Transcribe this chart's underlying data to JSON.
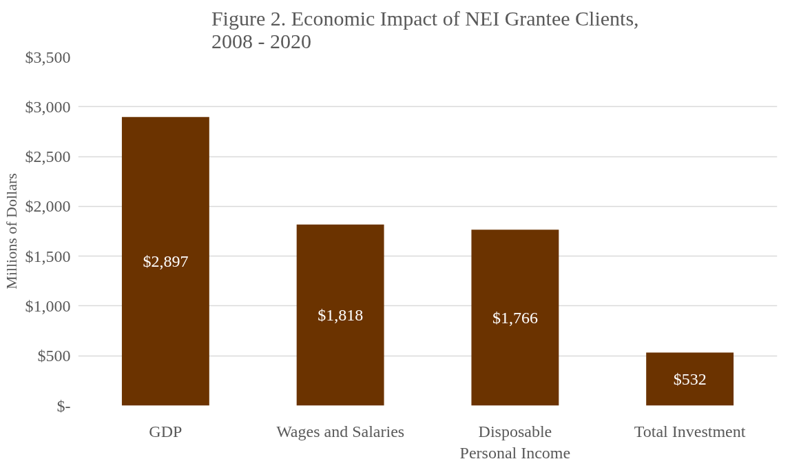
{
  "chart_data": {
    "type": "bar",
    "title": "Figure 2.  Economic Impact of NEI Grantee Clients,\n2008 - 2020",
    "ylabel": "Millions of Dollars",
    "categories": [
      "GDP",
      "Wages and Salaries",
      "Disposable\nPersonal Income",
      "Total Investment"
    ],
    "values": [
      2897,
      1818,
      1766,
      532
    ],
    "color": "#6b3300",
    "value_labels": [
      "$2,897",
      "$1,818",
      "$1,766",
      "$532"
    ],
    "ylim": [
      0,
      3500
    ],
    "yticks": [
      {
        "value": 0,
        "label": "$-"
      },
      {
        "value": 500,
        "label": "$500"
      },
      {
        "value": 1000,
        "label": "$1,000"
      },
      {
        "value": 1500,
        "label": "$1,500"
      },
      {
        "value": 2000,
        "label": "$2,000"
      },
      {
        "value": 2500,
        "label": "$2,500"
      },
      {
        "value": 3000,
        "label": "$3,000"
      },
      {
        "value": 3500,
        "label": "$3,500"
      }
    ],
    "grid": "y"
  }
}
